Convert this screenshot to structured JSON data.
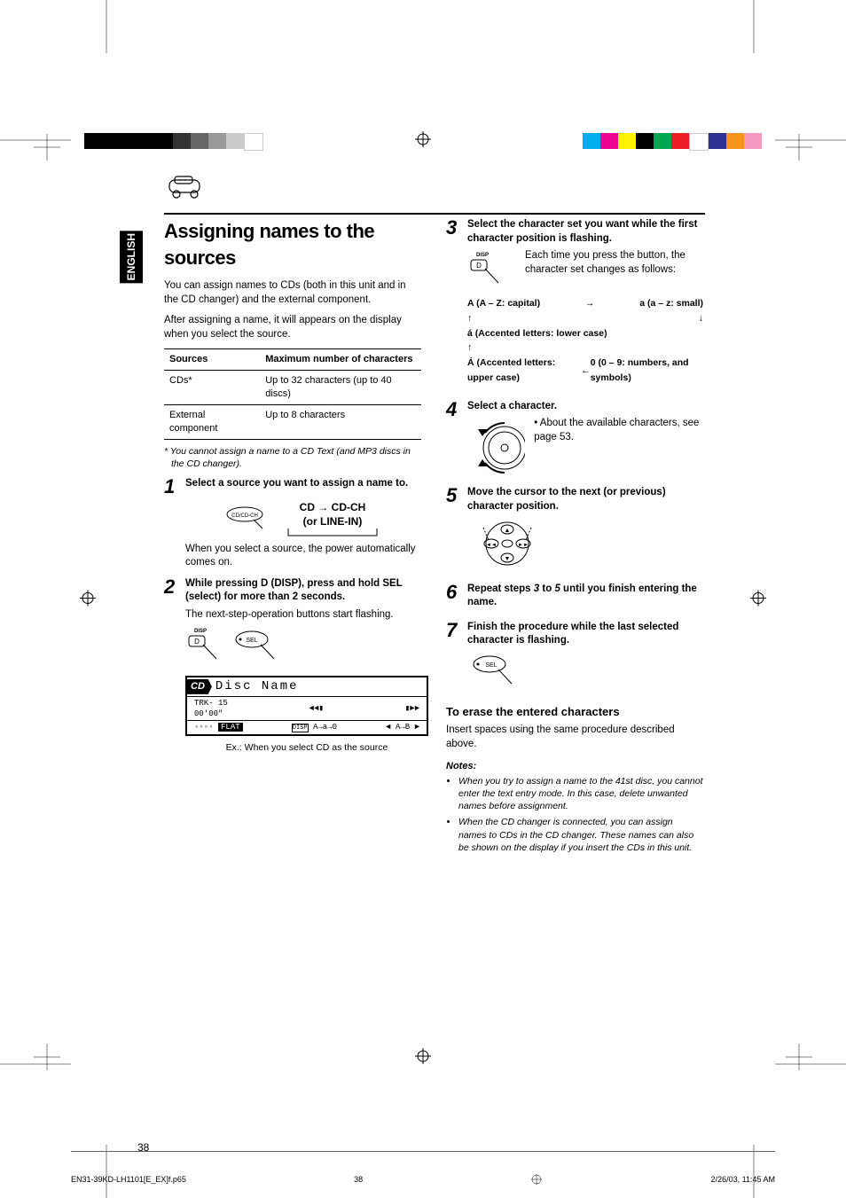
{
  "crop_color_swatches_left": [
    "#000",
    "#000",
    "#000",
    "#000",
    "#000",
    "#333",
    "#666",
    "#999",
    "#ccc",
    "#fff"
  ],
  "crop_color_swatches_right": [
    "#00aeef",
    "#ec008c",
    "#fff200",
    "#000",
    "#00a651",
    "#ed1c24",
    "#fff",
    "#2e3192",
    "#f7941d",
    "#f49ac1"
  ],
  "language_tab": "ENGLISH",
  "main_title": "Assigning names to the sources",
  "intro_p1": "You can assign names to CDs (both in this unit and in the CD changer) and the external component.",
  "intro_p2": "After assigning a name, it will appears on the display when you select the source.",
  "table": {
    "headers": [
      "Sources",
      "Maximum number of characters"
    ],
    "rows": [
      [
        "CDs*",
        "Up to 32 characters (up to 40 discs)"
      ],
      [
        "External component",
        "Up to 8 characters"
      ]
    ]
  },
  "table_footnote": "*  You cannot assign a name to a CD Text (and MP3 discs in the CD changer).",
  "steps": {
    "s1": {
      "num": "1",
      "title": "Select a source you want to assign a name to.",
      "flow_a": "CD",
      "flow_b": "CD-CH",
      "flow_c": "(or LINE-IN)",
      "after": "When you select a source, the power automatically comes on."
    },
    "s2": {
      "num": "2",
      "title": "While pressing D (DISP), press and hold SEL (select) for more than 2 seconds.",
      "after": "The next-step-operation buttons start flashing.",
      "lcd_cd": "CD",
      "lcd_disc": "Disc Name",
      "lcd_trk": "TRK- 15",
      "lcd_time": "00'00\"",
      "lcd_flat": "FLAT",
      "lcd_seq": "A→a→0",
      "lcd_abd": "A→B",
      "caption": "Ex.: When you select CD as the source"
    },
    "s3": {
      "num": "3",
      "title": "Select the character set you want while the first character position is flashing.",
      "side": "Each time you press the button, the character set changes as follows:",
      "cap": "(A – Z: capital)",
      "small_l": "(a – z: small)",
      "acc_lower": "(Accented letters: lower case)",
      "acc_upper": "(Accented letters: upper case)",
      "nums": "(0 – 9: numbers, and symbols)"
    },
    "s4": {
      "num": "4",
      "title": "Select a character.",
      "side": "About the available characters, see page 53."
    },
    "s5": {
      "num": "5",
      "title": "Move the cursor to the next (or previous) character position."
    },
    "s6": {
      "num": "6",
      "title_a": "Repeat steps ",
      "title_b": " to ",
      "title_c": " until you finish entering the name.",
      "em1": "3",
      "em2": "5"
    },
    "s7": {
      "num": "7",
      "title": "Finish the procedure while the last selected character is flashing."
    }
  },
  "erase_head": "To erase the entered characters",
  "erase_body": "Insert spaces using the same procedure described above.",
  "notes_head": "Notes:",
  "notes": [
    "When you try to assign a name to the 41st disc, you cannot enter the text entry mode. In this case, delete unwanted names before assignment.",
    "When the CD changer is connected, you can assign names to CDs in the CD changer. These names can also be shown on the display if you insert the CDs in this unit."
  ],
  "page_number": "38",
  "footer_file": "EN31-39KD-LH1101[E_EX]f.p65",
  "footer_page": "38",
  "footer_date": "2/26/03, 11:45 AM"
}
